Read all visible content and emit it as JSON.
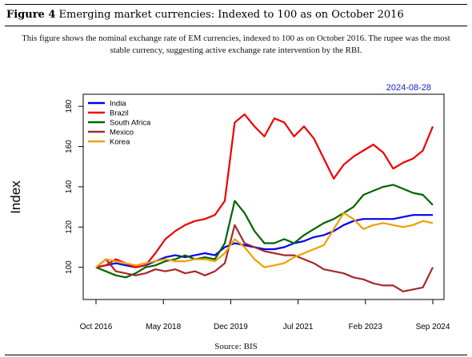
{
  "figure": {
    "label": "Figure 4",
    "title": "Emerging market currencies: Indexed to 100 as on October 2016",
    "description": "This figure shows the nominal exchange rate of EM currencies, indexed to 100 as on October 2016. The rupee was the most stable currency, suggesting active exchange rate intervention by the RBI.",
    "source": "Source: BIS",
    "date_stamp": "2024-08-28"
  },
  "chart_data": {
    "type": "line",
    "title": "",
    "xlabel": "",
    "ylabel": "Index",
    "ylim": [
      84,
      186
    ],
    "x_start": "2016-10",
    "x_step": "quarter",
    "x_ticks": [
      "Oct 2016",
      "May 2018",
      "Dec 2019",
      "Jul 2021",
      "Feb 2023",
      "Sep 2024"
    ],
    "y_ticks": [
      100,
      120,
      140,
      160,
      180
    ],
    "legend_position": "top-left",
    "grid": false,
    "series": [
      {
        "name": "India",
        "color": "#0000ee",
        "values": [
          100,
          101,
          102,
          101,
          100,
          101,
          103,
          105,
          106,
          105,
          106,
          107,
          106,
          110,
          112,
          111,
          110,
          109,
          109,
          110,
          112,
          113,
          115,
          116,
          118,
          121,
          123,
          124,
          124,
          124,
          124,
          125,
          126,
          126,
          126
        ]
      },
      {
        "name": "Brazil",
        "color": "#ee0000",
        "values": [
          100,
          101,
          104,
          102,
          100,
          101,
          107,
          114,
          118,
          121,
          123,
          124,
          126,
          133,
          172,
          176,
          170,
          165,
          174,
          172,
          165,
          170,
          164,
          154,
          144,
          151,
          155,
          158,
          161,
          157,
          149,
          152,
          154,
          158,
          170
        ]
      },
      {
        "name": "South Africa",
        "color": "#006400",
        "values": [
          100,
          98,
          96,
          95,
          97,
          100,
          101,
          103,
          104,
          106,
          104,
          105,
          104,
          112,
          133,
          127,
          118,
          112,
          112,
          114,
          112,
          116,
          119,
          122,
          124,
          127,
          130,
          136,
          138,
          140,
          141,
          139,
          137,
          136,
          131
        ]
      },
      {
        "name": "Mexico",
        "color": "#a52a2a",
        "values": [
          100,
          104,
          98,
          97,
          96,
          97,
          99,
          98,
          99,
          97,
          98,
          96,
          98,
          102,
          121,
          112,
          110,
          108,
          107,
          106,
          106,
          104,
          102,
          99,
          98,
          97,
          95,
          94,
          92,
          91,
          91,
          88,
          89,
          90,
          100
        ]
      },
      {
        "name": "Korea",
        "color": "#f0a000",
        "values": [
          100,
          104,
          103,
          102,
          101,
          102,
          103,
          104,
          103,
          103,
          104,
          104,
          103,
          107,
          114,
          110,
          104,
          100,
          101,
          102,
          105,
          107,
          109,
          111,
          119,
          127,
          124,
          119,
          121,
          122,
          121,
          120,
          121,
          123,
          122
        ]
      }
    ]
  }
}
